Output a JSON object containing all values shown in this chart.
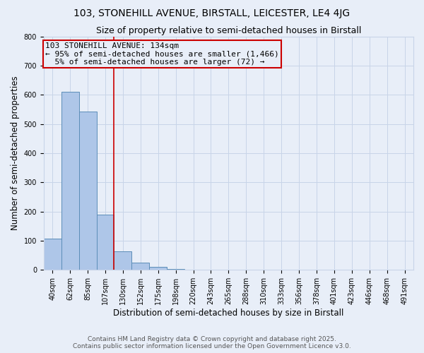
{
  "title": "103, STONEHILL AVENUE, BIRSTALL, LEICESTER, LE4 4JG",
  "subtitle": "Size of property relative to semi-detached houses in Birstall",
  "xlabel": "Distribution of semi-detached houses by size in Birstall",
  "ylabel": "Number of semi-detached properties",
  "bar_values": [
    107,
    611,
    543,
    190,
    63,
    26,
    10,
    4,
    0,
    0,
    0,
    0,
    0,
    0,
    0,
    0,
    0,
    0,
    0,
    0,
    0
  ],
  "bin_labels": [
    "40sqm",
    "62sqm",
    "85sqm",
    "107sqm",
    "130sqm",
    "152sqm",
    "175sqm",
    "198sqm",
    "220sqm",
    "243sqm",
    "265sqm",
    "288sqm",
    "310sqm",
    "333sqm",
    "356sqm",
    "378sqm",
    "401sqm",
    "423sqm",
    "446sqm",
    "468sqm",
    "491sqm"
  ],
  "bar_color": "#aec6e8",
  "bar_edge_color": "#5b8db8",
  "red_line_x": 3.5,
  "red_line_color": "#cc0000",
  "annotation_line1": "103 STONEHILL AVENUE: 134sqm",
  "annotation_line2": "← 95% of semi-detached houses are smaller (1,466)",
  "annotation_line3": "  5% of semi-detached houses are larger (72) →",
  "grid_color": "#c8d4e8",
  "background_color": "#e8eef8",
  "ylim": [
    0,
    800
  ],
  "yticks": [
    0,
    100,
    200,
    300,
    400,
    500,
    600,
    700,
    800
  ],
  "title_fontsize": 10,
  "subtitle_fontsize": 9,
  "axis_label_fontsize": 8.5,
  "tick_fontsize": 7,
  "ann_fontsize": 8,
  "footer_text": "Contains HM Land Registry data © Crown copyright and database right 2025.\nContains public sector information licensed under the Open Government Licence v3.0.",
  "footer_fontsize": 6.5
}
